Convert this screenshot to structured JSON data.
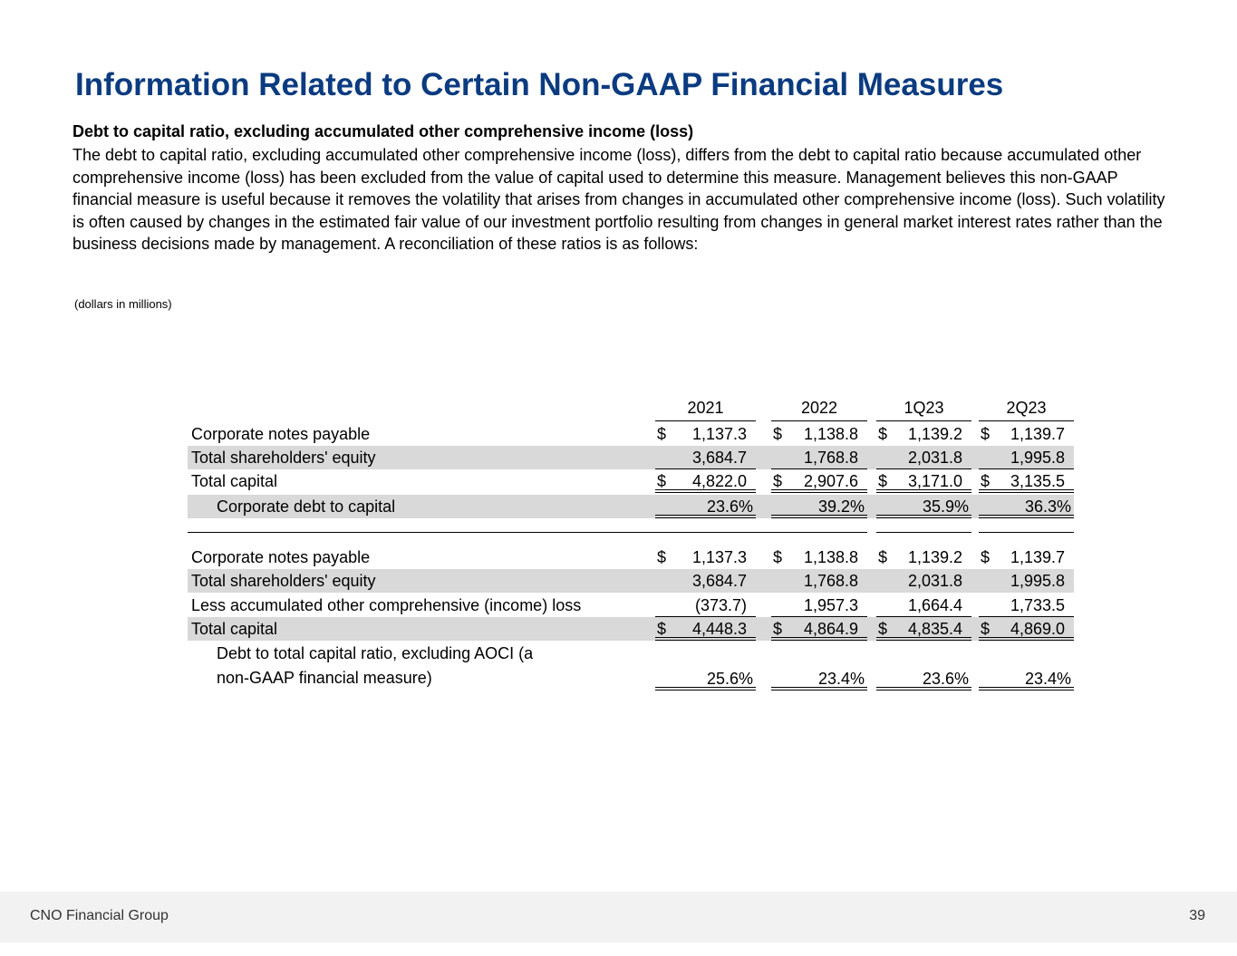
{
  "title": "Information Related to Certain Non-GAAP Financial Measures",
  "subheading": "Debt to capital ratio, excluding accumulated other comprehensive income (loss)",
  "paragraph": "The debt to capital ratio, excluding accumulated other comprehensive income (loss), differs from the debt to capital ratio because accumulated other comprehensive income (loss) has been excluded from the value of capital used to determine this measure. Management believes this non-GAAP financial measure is useful because it removes the volatility that arises from changes in accumulated other comprehensive income (loss). Such volatility is often caused by changes in the estimated fair value of our investment portfolio resulting from changes in general market interest rates rather than the business decisions made by management. A reconciliation of these ratios is as follows:",
  "units_note": "(dollars in millions)",
  "table": {
    "columns": [
      "2021",
      "2022",
      "1Q23",
      "2Q23"
    ],
    "section1": [
      {
        "label": "Corporate notes payable",
        "dollar": true,
        "values": [
          "1,137.3",
          "1,138.8",
          "1,139.2",
          "1,139.7"
        ]
      },
      {
        "label": "Total shareholders' equity",
        "dollar": false,
        "values": [
          "3,684.7",
          "1,768.8",
          "2,031.8",
          "1,995.8"
        ]
      },
      {
        "label": "Total capital",
        "dollar": true,
        "values": [
          "4,822.0",
          "2,907.6",
          "3,171.0",
          "3,135.5"
        ]
      },
      {
        "label": "Corporate debt to capital",
        "dollar": false,
        "values": [
          "23.6%",
          "39.2%",
          "35.9%",
          "36.3%"
        ]
      }
    ],
    "section2": [
      {
        "label": "Corporate notes payable",
        "dollar": true,
        "values": [
          "1,137.3",
          "1,138.8",
          "1,139.2",
          "1,139.7"
        ]
      },
      {
        "label": "Total shareholders' equity",
        "dollar": false,
        "values": [
          "3,684.7",
          "1,768.8",
          "2,031.8",
          "1,995.8"
        ]
      },
      {
        "label": "Less accumulated other comprehensive (income) loss",
        "dollar": false,
        "values": [
          "(373.7)",
          "1,957.3",
          "1,664.4",
          "1,733.5"
        ]
      },
      {
        "label": "Total capital",
        "dollar": true,
        "values": [
          "4,448.3",
          "4,864.9",
          "4,835.4",
          "4,869.0"
        ]
      },
      {
        "label": "Debt to total capital ratio, excluding AOCI (a",
        "label_line2": "non-GAAP financial measure)",
        "dollar": false,
        "values": [
          "25.6%",
          "23.4%",
          "23.6%",
          "23.4%"
        ]
      }
    ],
    "currency_symbol": "$"
  },
  "footer": {
    "company": "CNO Financial Group",
    "page": "39"
  },
  "colors": {
    "title": "#0b3b80",
    "row_shade": "#d9d9d9",
    "footer_bg": "#f2f2f2"
  }
}
